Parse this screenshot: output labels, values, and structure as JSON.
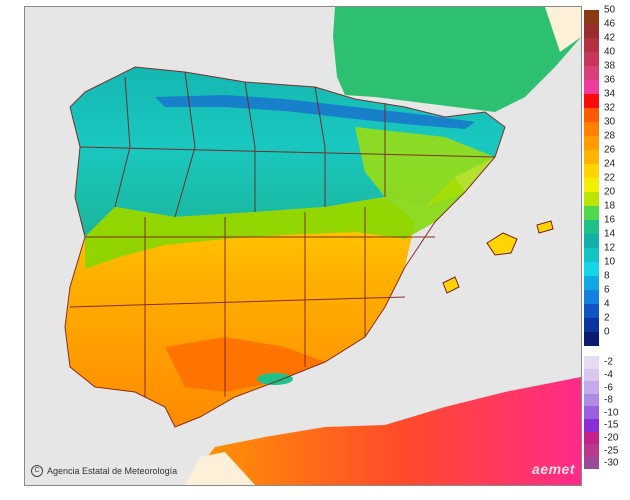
{
  "map": {
    "credit": "Agencia Estatal de Meteorología",
    "credit_icon": "copyright-circle-icon",
    "logo": "aemet",
    "sea_color": "#e6e6e6",
    "background_land_color": "#fdf0d8",
    "province_border_color": "#7a1f1f"
  },
  "legend": {
    "positive": [
      {
        "label": "50",
        "color": "#8b3a12"
      },
      {
        "label": "46",
        "color": "#9a2e2e"
      },
      {
        "label": "42",
        "color": "#b23240"
      },
      {
        "label": "40",
        "color": "#c8375a"
      },
      {
        "label": "38",
        "color": "#d8407a"
      },
      {
        "label": "36",
        "color": "#ee3c9c"
      },
      {
        "label": "34",
        "color": "#ff0a0a"
      },
      {
        "label": "32",
        "color": "#ff5a00"
      },
      {
        "label": "30",
        "color": "#ff8000"
      },
      {
        "label": "28",
        "color": "#ff9c00"
      },
      {
        "label": "26",
        "color": "#ffb400"
      },
      {
        "label": "24",
        "color": "#ffd400"
      },
      {
        "label": "22",
        "color": "#f4ee00"
      },
      {
        "label": "20",
        "color": "#b8e600"
      },
      {
        "label": "18",
        "color": "#4ed84a"
      },
      {
        "label": "16",
        "color": "#1fc08a"
      },
      {
        "label": "14",
        "color": "#12b0a6"
      },
      {
        "label": "12",
        "color": "#12c4c4"
      },
      {
        "label": "10",
        "color": "#14d4e8"
      },
      {
        "label": "8",
        "color": "#12a8e6"
      },
      {
        "label": "6",
        "color": "#1480e0"
      },
      {
        "label": "4",
        "color": "#1054c4"
      },
      {
        "label": "2",
        "color": "#0c34a0"
      },
      {
        "label": "0",
        "color": "#0a1c70"
      }
    ],
    "negative": [
      {
        "label": "-2",
        "color": "#e6dcf2"
      },
      {
        "label": "-4",
        "color": "#d8c6ee"
      },
      {
        "label": "-6",
        "color": "#c4aaea"
      },
      {
        "label": "-8",
        "color": "#ae8ce4"
      },
      {
        "label": "-10",
        "color": "#9a60e0"
      },
      {
        "label": "-15",
        "color": "#8a2ed8"
      },
      {
        "label": "-20",
        "color": "#c6208a"
      },
      {
        "label": "-25",
        "color": "#ba3a8a"
      },
      {
        "label": "-30",
        "color": "#9a4a98"
      }
    ]
  }
}
